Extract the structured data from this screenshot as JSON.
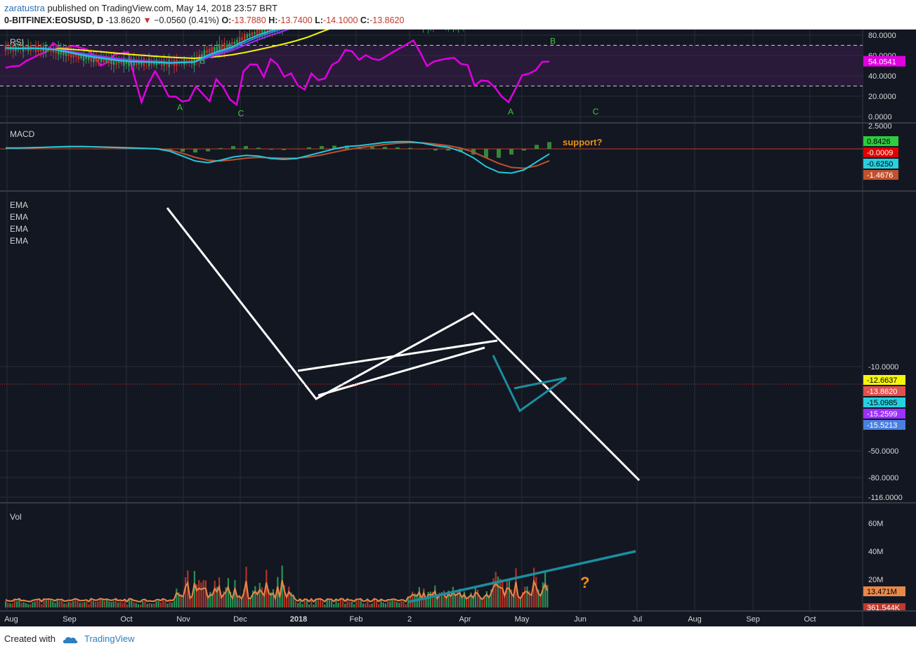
{
  "header": {
    "author": "zaratustra",
    "published_text": "published on TradingView.com, May 14, 2018 23:57 BRT",
    "symbol": "0-BITFINEX:EOSUSD, D",
    "last": "-13.8620",
    "change_arrow": "▼",
    "change": "−0.0560 (0.41%)",
    "o_label": "O:",
    "o_value": "-13.7880",
    "h_label": "H:",
    "h_value": "-13.7400",
    "l_label": "L:",
    "l_value": "-14.1000",
    "c_label": "C:",
    "c_value": "-13.8620"
  },
  "footer": {
    "created_with": "Created with",
    "brand": "TradingView"
  },
  "colors": {
    "background": "#131722",
    "grid": "#2a2e39",
    "rsi": "#e000e0",
    "macd": "#26c6da",
    "signal": "#c0502e",
    "hist": "#3a9c3a",
    "ema_fast": "#26c6da",
    "ema_2": "#3d7fe0",
    "ema_3": "#9b30ff",
    "ema_slow": "#f5f50a",
    "up": "#2e9e5b",
    "down": "#c0392b",
    "trendline": "#ffffff",
    "wedge": "#1a8fa0",
    "annotation": "#e8901a",
    "wave": "#3cc83c",
    "vol_ma": "#e8884a"
  },
  "chart_data": [
    {
      "type": "line",
      "title": "RSI",
      "y_ticks": [
        "80.0000",
        "60.0000",
        "40.0000",
        "20.0000",
        "0.0000"
      ],
      "ylim": [
        0,
        80
      ],
      "bands": [
        30,
        70
      ],
      "last_value": "54.0541",
      "series": [
        {
          "name": "",
          "values": [
            48,
            49,
            52,
            56,
            58,
            61,
            66,
            70,
            67,
            68,
            71,
            66,
            65,
            62,
            50,
            55,
            60,
            64,
            63,
            38,
            16,
            35,
            42,
            30,
            22,
            20,
            12,
            18,
            30,
            22,
            14,
            38,
            31,
            14,
            12,
            46,
            51,
            52,
            41,
            55,
            52,
            40,
            45,
            28,
            28,
            40,
            36,
            39,
            50,
            55,
            64,
            63,
            58,
            62,
            57,
            58,
            62,
            64,
            66,
            70,
            72,
            64,
            50,
            54,
            56,
            55,
            58,
            52,
            52,
            32,
            34,
            37,
            30,
            18,
            12,
            24,
            38,
            40,
            44,
            53,
            54
          ]
        }
      ],
      "annotations": [
        {
          "text": "A",
          "x": "Oct 28",
          "y": 9
        },
        {
          "text": "B",
          "x": "Nov 6",
          "y": 55
        },
        {
          "text": "C",
          "x": "Dec 1",
          "y": 3
        },
        {
          "text": "A",
          "x": "Apr 26",
          "y": 5
        },
        {
          "text": "B",
          "x": "May 17",
          "y": 74
        },
        {
          "text": "C",
          "x": "Jun 7",
          "y": 5
        }
      ]
    },
    {
      "type": "line",
      "title": "MACD",
      "y_ticks": [
        "2.5000"
      ],
      "zero_line": 0,
      "last_values": {
        "histogram": "0.8426",
        "zero": "-0.0009",
        "macd": "-0.6250",
        "signal": "-1.4676"
      },
      "series": [
        {
          "name": "",
          "values": [
            0.1,
            0.1,
            0.15,
            0.2,
            0.25,
            0.3,
            0.3,
            0.25,
            0.2,
            0.15,
            0.1,
            0.05,
            0,
            -0.3,
            -0.9,
            -1.5,
            -1.7,
            -1.4,
            -1.0,
            -0.8,
            -0.9,
            -1.2,
            -1.3,
            -1.2,
            -0.8,
            -0.4,
            0,
            0.3,
            0.4,
            0.6,
            0.8,
            0.9,
            0.9,
            0.7,
            0.4,
            0.2,
            -0.3,
            -1.1,
            -2.2,
            -2.9,
            -3.0,
            -2.6,
            -1.6,
            -0.625
          ]
        },
        {
          "name": "",
          "values": [
            0.1,
            0.1,
            0.12,
            0.17,
            0.22,
            0.25,
            0.27,
            0.26,
            0.23,
            0.18,
            0.13,
            0.08,
            0.03,
            -0.15,
            -0.55,
            -1.05,
            -1.4,
            -1.5,
            -1.35,
            -1.15,
            -1.05,
            -1.1,
            -1.15,
            -1.15,
            -1.0,
            -0.75,
            -0.4,
            -0.1,
            0.15,
            0.35,
            0.55,
            0.7,
            0.78,
            0.75,
            0.6,
            0.4,
            0.1,
            -0.4,
            -1.1,
            -1.8,
            -2.3,
            -2.4,
            -2.1,
            -1.4676
          ]
        }
      ],
      "annotations": [
        {
          "text": "support?"
        }
      ]
    },
    {
      "type": "line",
      "title": "EOSUSD",
      "legend": [
        "EMA",
        "EMA",
        "EMA",
        "EMA"
      ],
      "y_ticks": [
        "-10.0000",
        "-50.0000",
        "-80.0000",
        "-116.0000"
      ],
      "last_values": {
        "ema_slow": "-12.6637",
        "close": "-13.8620",
        "ema_fast": "-15.0985",
        "ema_3": "-15.2599",
        "ema_2": "-15.5213"
      },
      "x_ticks": [
        "Aug",
        "Sep",
        "Oct",
        "Nov",
        "Dec",
        "2018",
        "Feb",
        "2",
        "Apr",
        "May",
        "Jun",
        "Jul",
        "Aug",
        "Sep",
        "Oct"
      ],
      "series": [
        {
          "name": "",
          "values": [
            0.86,
            0.84,
            0.86,
            0.83,
            0.78,
            0.67,
            0.58,
            0.52,
            0.47,
            0.42,
            0.4,
            0.4,
            0.39,
            0.36,
            0.4,
            0.42,
            0.74,
            0.85,
            0.98,
            1.23,
            1.4,
            1.53,
            1.66,
            1.85,
            2.13,
            2.59,
            2.74,
            2.59,
            2.13,
            2.27,
            2.19,
            2.05,
            1.9,
            1.71,
            1.72,
            1.77,
            1.77,
            1.89,
            2.23,
            2.62,
            2.74,
            2.64,
            2.48,
            2.51
          ]
        }
      ],
      "annotations": [
        {
          "text": "?"
        }
      ]
    },
    {
      "type": "bar",
      "title": "Vol",
      "y_ticks": [
        "60M",
        "40M",
        "20M"
      ],
      "last_values": {
        "ma": "13.471M",
        "volume": "361.544K"
      }
    }
  ]
}
